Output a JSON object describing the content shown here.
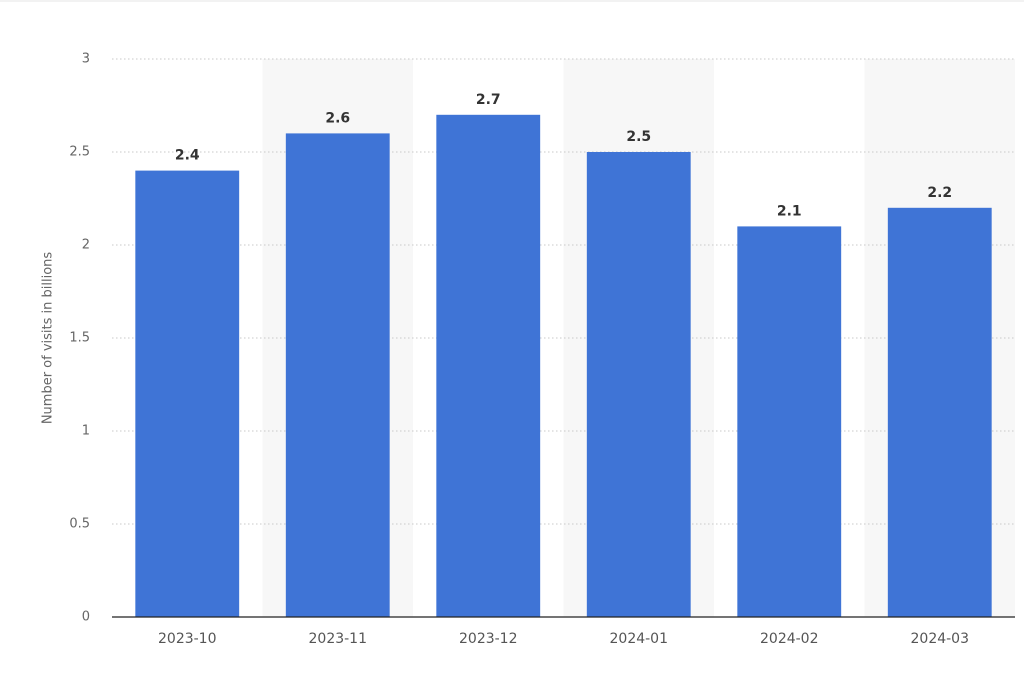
{
  "chart_data": {
    "type": "bar",
    "y_label": "Number of visits in billions",
    "categories": [
      "2023-10",
      "2023-11",
      "2023-12",
      "2024-01",
      "2024-02",
      "2024-03"
    ],
    "values": [
      2.4,
      2.6,
      2.7,
      2.5,
      2.1,
      2.2
    ],
    "color": "#3f74d6",
    "ylim": [
      0,
      3
    ],
    "yticks": [
      0,
      0.5,
      1,
      1.5,
      2,
      2.5,
      3
    ],
    "grid": true
  }
}
